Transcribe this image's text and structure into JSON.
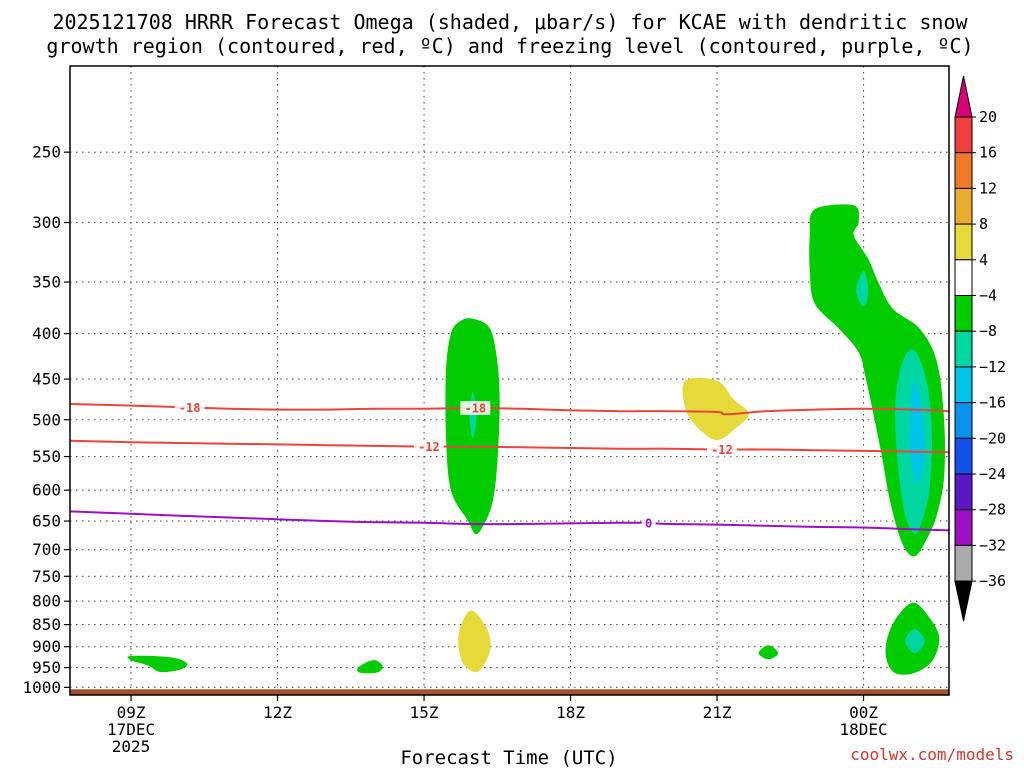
{
  "chart_data": {
    "type": "contour",
    "title": [
      "2025121708 HRRR Forecast Omega (shaded, μbar/s) for KCAE with dendritic snow",
      "growth region (contoured, red, ºC) and freezing level (contoured, purple, ºC)"
    ],
    "xlabel": "Forecast Time (UTC)",
    "ylabel": "",
    "x_range_hours": [
      7.75,
      25.75
    ],
    "y_range_hpa": [
      1020,
      200
    ],
    "y_log_scale": true,
    "grid": true,
    "x_ticks": [
      {
        "hour": 9,
        "label": [
          "09Z",
          "17DEC",
          "2025"
        ]
      },
      {
        "hour": 12,
        "label": [
          "12Z"
        ]
      },
      {
        "hour": 15,
        "label": [
          "15Z"
        ]
      },
      {
        "hour": 18,
        "label": [
          "18Z"
        ]
      },
      {
        "hour": 21,
        "label": [
          "21Z"
        ]
      },
      {
        "hour": 24,
        "label": [
          "00Z",
          "18DEC"
        ]
      }
    ],
    "y_ticks": [
      250,
      300,
      350,
      400,
      450,
      500,
      550,
      600,
      650,
      700,
      750,
      800,
      850,
      900,
      950,
      1000
    ],
    "ground_level_hpa": 1005,
    "isotherms": [
      {
        "label": "-18",
        "color": "#e8463b",
        "points": [
          [
            7.75,
            480
          ],
          [
            9,
            482
          ],
          [
            10,
            484
          ],
          [
            11,
            486
          ],
          [
            12,
            487
          ],
          [
            13,
            487
          ],
          [
            14,
            486
          ],
          [
            15,
            486
          ],
          [
            16,
            485
          ],
          [
            17,
            486
          ],
          [
            18,
            488
          ],
          [
            19,
            489
          ],
          [
            20,
            489
          ],
          [
            21,
            490
          ],
          [
            21.2,
            493
          ],
          [
            22,
            489
          ],
          [
            23,
            487
          ],
          [
            24,
            486
          ],
          [
            25,
            487
          ],
          [
            25.75,
            489
          ]
        ],
        "label_at": [
          [
            10.2,
            486
          ],
          [
            16.05,
            486
          ]
        ]
      },
      {
        "label": "-12",
        "color": "#e8463b",
        "points": [
          [
            7.75,
            528
          ],
          [
            9,
            530
          ],
          [
            10,
            531
          ],
          [
            11,
            532
          ],
          [
            12,
            533
          ],
          [
            13,
            534
          ],
          [
            14,
            535
          ],
          [
            15,
            536
          ],
          [
            16,
            536
          ],
          [
            17,
            537
          ],
          [
            18,
            538
          ],
          [
            19,
            539
          ],
          [
            20,
            539
          ],
          [
            21,
            540
          ],
          [
            22,
            540
          ],
          [
            23,
            541
          ],
          [
            24,
            542
          ],
          [
            25,
            543
          ],
          [
            25.75,
            544
          ]
        ],
        "label_at": [
          [
            15.1,
            536
          ],
          [
            21.1,
            540
          ]
        ]
      },
      {
        "label": "0",
        "color": "#9b10c2",
        "points": [
          [
            7.75,
            634
          ],
          [
            9,
            638
          ],
          [
            10,
            641
          ],
          [
            11,
            644
          ],
          [
            12,
            647
          ],
          [
            13,
            650
          ],
          [
            14,
            652
          ],
          [
            15,
            653
          ],
          [
            16,
            655
          ],
          [
            17,
            655
          ],
          [
            18,
            654
          ],
          [
            19,
            653
          ],
          [
            19.5,
            653
          ],
          [
            20,
            655
          ],
          [
            21,
            656
          ],
          [
            22,
            658
          ],
          [
            23,
            660
          ],
          [
            24,
            661
          ],
          [
            25,
            664
          ],
          [
            25.75,
            666
          ]
        ],
        "label_at": [
          [
            19.6,
            654
          ]
        ]
      }
    ],
    "omega_regions": [
      {
        "name": "15Z column",
        "range": [
          -8,
          -4
        ],
        "color": "#00cc00",
        "points": [
          [
            16,
            385
          ],
          [
            16.35,
            395
          ],
          [
            16.5,
            430
          ],
          [
            16.55,
            480
          ],
          [
            16.5,
            560
          ],
          [
            16.4,
            620
          ],
          [
            16.2,
            660
          ],
          [
            16.05,
            672
          ],
          [
            15.9,
            650
          ],
          [
            15.55,
            600
          ],
          [
            15.45,
            520
          ],
          [
            15.45,
            440
          ],
          [
            15.55,
            400
          ],
          [
            15.75,
            387
          ]
        ]
      },
      {
        "name": "15Z core",
        "range": [
          -12,
          -8
        ],
        "color": "#00d6a0",
        "points": [
          [
            16,
            465
          ],
          [
            16.07,
            495
          ],
          [
            16,
            525
          ],
          [
            15.93,
            495
          ]
        ]
      },
      {
        "name": "late column",
        "range": [
          -8,
          -4
        ],
        "color": "#00cc00",
        "points": [
          [
            23,
            290
          ],
          [
            23.8,
            287
          ],
          [
            23.9,
            300
          ],
          [
            23.8,
            310
          ],
          [
            24.1,
            330
          ],
          [
            24.3,
            350
          ],
          [
            24.6,
            375
          ],
          [
            25.15,
            395
          ],
          [
            25.5,
            430
          ],
          [
            25.65,
            500
          ],
          [
            25.65,
            580
          ],
          [
            25.5,
            640
          ],
          [
            25.3,
            680
          ],
          [
            25.05,
            712
          ],
          [
            24.8,
            690
          ],
          [
            24.55,
            620
          ],
          [
            24.35,
            540
          ],
          [
            24.05,
            450
          ],
          [
            23.9,
            420
          ],
          [
            23.5,
            395
          ],
          [
            23,
            370
          ],
          [
            22.9,
            340
          ],
          [
            22.9,
            310
          ]
        ]
      },
      {
        "name": "late core",
        "range": [
          -12,
          -8
        ],
        "color": "#00d6a0",
        "points": [
          [
            25.05,
            418
          ],
          [
            25.3,
            455
          ],
          [
            25.4,
            520
          ],
          [
            25.35,
            600
          ],
          [
            25.2,
            650
          ],
          [
            25.05,
            672
          ],
          [
            24.85,
            640
          ],
          [
            24.7,
            560
          ],
          [
            24.65,
            480
          ],
          [
            24.8,
            430
          ]
        ]
      },
      {
        "name": "late inner",
        "range": [
          -16,
          -12
        ],
        "color": "#00c4e8",
        "points": [
          [
            25.05,
            452
          ],
          [
            25.2,
            490
          ],
          [
            25.25,
            545
          ],
          [
            25.1,
            590
          ],
          [
            24.95,
            545
          ],
          [
            24.95,
            490
          ]
        ]
      },
      {
        "name": "upper speck",
        "range": [
          -12,
          -8
        ],
        "color": "#00d6a0",
        "points": [
          [
            24,
            340
          ],
          [
            24.1,
            358
          ],
          [
            24,
            373
          ],
          [
            23.85,
            358
          ]
        ]
      },
      {
        "name": "low 10Z",
        "range": [
          -8,
          -4
        ],
        "color": "#00cc00",
        "points": [
          [
            9,
            922
          ],
          [
            9.8,
            925
          ],
          [
            10.15,
            940
          ],
          [
            10,
            955
          ],
          [
            9.6,
            961
          ],
          [
            9.35,
            945
          ],
          [
            9,
            932
          ]
        ]
      },
      {
        "name": "low 14Z",
        "range": [
          -8,
          -4
        ],
        "color": "#00cc00",
        "points": [
          [
            13.95,
            932
          ],
          [
            14.15,
            945
          ],
          [
            14.05,
            962
          ],
          [
            13.7,
            963
          ],
          [
            13.65,
            950
          ]
        ]
      },
      {
        "name": "low 22Z",
        "range": [
          -8,
          -4
        ],
        "color": "#00cc00",
        "points": [
          [
            22.05,
            897
          ],
          [
            22.25,
            915
          ],
          [
            22.05,
            930
          ],
          [
            21.85,
            915
          ]
        ]
      },
      {
        "name": "low late",
        "range": [
          -8,
          -4
        ],
        "color": "#00cc00",
        "points": [
          [
            25.0,
            803
          ],
          [
            25.35,
            835
          ],
          [
            25.55,
            880
          ],
          [
            25.4,
            935
          ],
          [
            25.0,
            965
          ],
          [
            24.6,
            960
          ],
          [
            24.45,
            910
          ],
          [
            24.6,
            848
          ]
        ]
      },
      {
        "name": "low late core",
        "range": [
          -12,
          -8
        ],
        "color": "#00d6a0",
        "points": [
          [
            25.05,
            860
          ],
          [
            25.25,
            887
          ],
          [
            25.05,
            915
          ],
          [
            24.85,
            887
          ]
        ]
      },
      {
        "name": "21Z rising",
        "range": [
          4,
          8
        ],
        "color": "#e6d93a",
        "points": [
          [
            20.35,
            452
          ],
          [
            21.0,
            452
          ],
          [
            21.35,
            475
          ],
          [
            21.65,
            492
          ],
          [
            21.4,
            510
          ],
          [
            21.0,
            527
          ],
          [
            20.6,
            510
          ],
          [
            20.35,
            485
          ]
        ]
      },
      {
        "name": "16Z low rising",
        "range": [
          4,
          8
        ],
        "color": "#e6d93a",
        "points": [
          [
            16,
            820
          ],
          [
            16.3,
            862
          ],
          [
            16.35,
            910
          ],
          [
            16.1,
            960
          ],
          [
            15.8,
            940
          ],
          [
            15.7,
            885
          ],
          [
            15.8,
            840
          ]
        ]
      }
    ],
    "colorbar": {
      "colors": [
        "#d9007a",
        "#f03e3e",
        "#f07a28",
        "#e8ad2e",
        "#e6d93a",
        "#ffffff",
        "#00cc00",
        "#00d6a0",
        "#00c4e8",
        "#0b92ec",
        "#1450ec",
        "#5a18c6",
        "#9b10c2",
        "#aaaaaa",
        "#000000"
      ],
      "labels": [
        "20",
        "16",
        "12",
        "8",
        "4",
        "−4",
        "−8",
        "−12",
        "−16",
        "−20",
        "−24",
        "−28",
        "−32",
        "−36"
      ]
    }
  },
  "credit": "coolwx.com/models"
}
